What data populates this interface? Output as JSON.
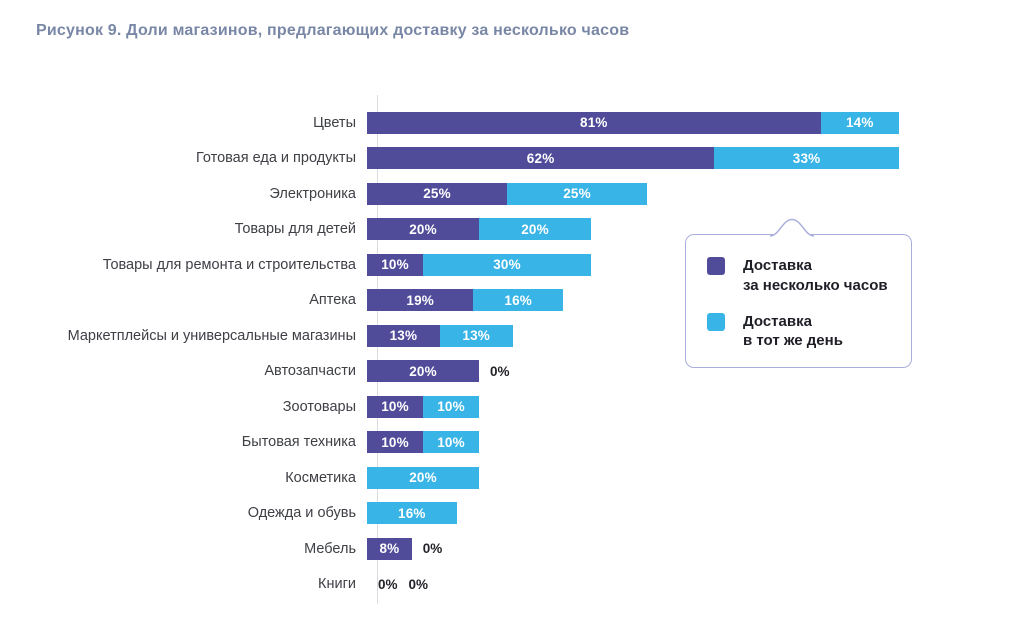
{
  "title": "Рисунок 9. Доли магазинов, предлагающих доставку за несколько часов",
  "colors": {
    "series_hours": "#504c9a",
    "series_same_day": "#39b4e6",
    "title_text": "#7987a6",
    "category_label": "#3e4046",
    "zero_label": "#232329",
    "axis_line": "#d9dbe0",
    "legend_border": "#a9aedd",
    "bar_value_text": "#ffffff"
  },
  "chart_data": {
    "type": "bar",
    "orientation": "horizontal",
    "stacked": true,
    "value_unit": "%",
    "xlim": [
      0,
      100
    ],
    "grid": false,
    "legend_position": "right-callout",
    "value_labels": {
      "placement": "inside-center",
      "zero_placement": "outside-right-of-bar"
    },
    "categories": [
      "Цветы",
      "Готовая еда и продукты",
      "Электроника",
      "Товары для детей",
      "Товары для ремонта и строительства",
      "Аптека",
      "Маркетплейсы и универсальные магазины",
      "Автозапчасти",
      "Зоотовары",
      "Бытовая техника",
      "Косметика",
      "Одежда и обувь",
      "Мебель",
      "Книги"
    ],
    "series": [
      {
        "name": "Доставка за несколько часов",
        "color": "#504c9a",
        "values": [
          81,
          62,
          25,
          20,
          10,
          19,
          13,
          20,
          10,
          10,
          0,
          0,
          8,
          0
        ]
      },
      {
        "name": "Доставка в тот же день",
        "color": "#39b4e6",
        "values": [
          14,
          33,
          25,
          20,
          30,
          16,
          13,
          0,
          10,
          10,
          20,
          16,
          0,
          0
        ]
      }
    ]
  },
  "legend": {
    "items": [
      {
        "color": "#504c9a",
        "lines": [
          "Доставка",
          "за несколько часов"
        ]
      },
      {
        "color": "#39b4e6",
        "lines": [
          "Доставка",
          "в тот же день"
        ]
      }
    ]
  }
}
